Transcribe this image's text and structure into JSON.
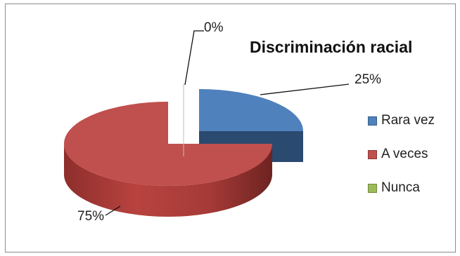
{
  "chart_data": {
    "type": "pie",
    "title": "Discriminación racial",
    "categories": [
      "Rara vez",
      "A veces",
      "Nunca"
    ],
    "values": [
      25,
      75,
      0
    ],
    "data_labels": [
      "25%",
      "75%",
      "0%"
    ],
    "colors": [
      "#4f81bd",
      "#c0504d",
      "#9bbb59"
    ],
    "legend_position": "right",
    "style": "3d-exploded"
  }
}
